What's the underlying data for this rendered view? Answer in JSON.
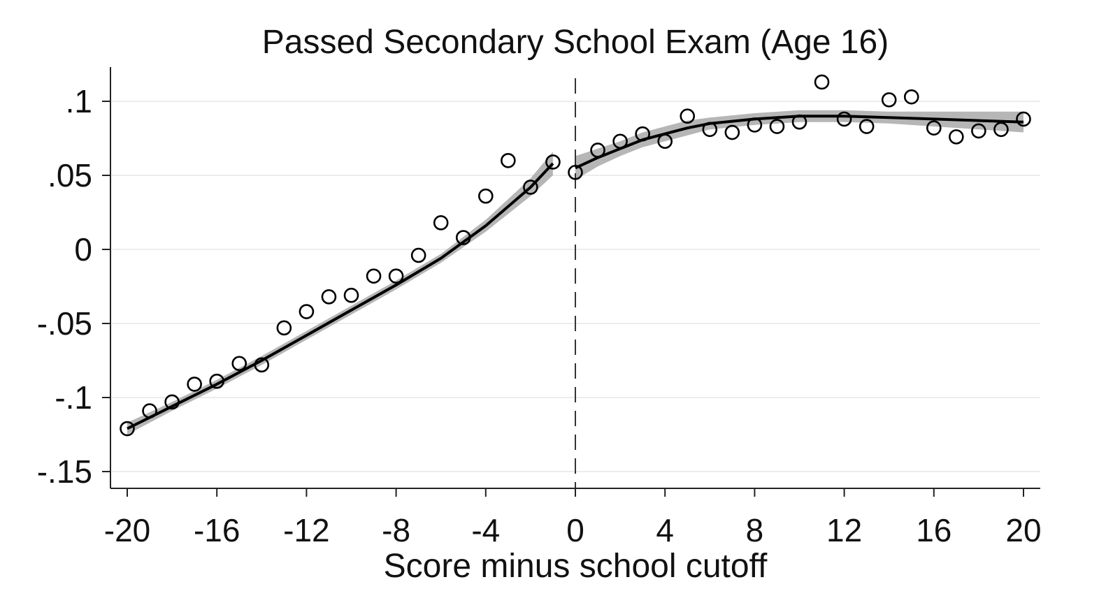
{
  "chart_data": {
    "type": "scatter",
    "title": "Passed Secondary School Exam (Age 16)",
    "xlabel": "Score minus school cutoff",
    "ylabel": "",
    "xlim": [
      -20,
      20
    ],
    "ylim": [
      -0.16,
      0.12
    ],
    "xticks": [
      -20,
      -16,
      -12,
      -8,
      -4,
      0,
      4,
      8,
      12,
      16,
      20
    ],
    "xtick_labels": [
      "-20",
      "-16",
      "-12",
      "-8",
      "-4",
      "0",
      "4",
      "8",
      "12",
      "16",
      "20"
    ],
    "yticks": [
      0.1,
      0.05,
      0,
      -0.05,
      -0.1,
      -0.15
    ],
    "ytick_labels": [
      ".1",
      ".05",
      "0",
      "-.05",
      "-.1",
      "-.15"
    ],
    "grid": true,
    "cutoff_line": {
      "x": 0,
      "style": "dashed"
    },
    "points": {
      "x": [
        -20,
        -19,
        -18,
        -17,
        -16,
        -15,
        -14,
        -13,
        -12,
        -11,
        -10,
        -9,
        -8,
        -7,
        -6,
        -5,
        -4,
        -3,
        -2,
        -1,
        0,
        1,
        2,
        3,
        4,
        5,
        6,
        7,
        8,
        9,
        10,
        11,
        12,
        13,
        14,
        15,
        16,
        17,
        18,
        19,
        20
      ],
      "y": [
        -0.121,
        -0.109,
        -0.103,
        -0.091,
        -0.089,
        -0.077,
        -0.078,
        -0.053,
        -0.042,
        -0.032,
        -0.031,
        -0.018,
        -0.018,
        -0.004,
        0.018,
        0.008,
        0.036,
        0.06,
        0.042,
        0.059,
        0.052,
        0.067,
        0.073,
        0.078,
        0.073,
        0.09,
        0.081,
        0.079,
        0.084,
        0.083,
        0.086,
        0.113,
        0.088,
        0.083,
        0.101,
        0.103,
        0.082,
        0.076,
        0.08,
        0.081,
        0.088
      ]
    },
    "fit_left": {
      "x": [
        -20,
        -18,
        -16,
        -14,
        -12,
        -10,
        -8,
        -6,
        -4,
        -2,
        -1
      ],
      "y": [
        -0.121,
        -0.106,
        -0.091,
        -0.075,
        -0.058,
        -0.041,
        -0.024,
        -0.006,
        0.016,
        0.042,
        0.058
      ],
      "ci_half_width": [
        0.004,
        0.003,
        0.003,
        0.003,
        0.003,
        0.003,
        0.003,
        0.003,
        0.004,
        0.006,
        0.008
      ]
    },
    "fit_right": {
      "x": [
        0,
        1,
        2,
        3,
        4,
        5,
        6,
        8,
        10,
        12,
        14,
        16,
        18,
        20
      ],
      "y": [
        0.055,
        0.062,
        0.068,
        0.074,
        0.078,
        0.082,
        0.085,
        0.088,
        0.09,
        0.09,
        0.089,
        0.088,
        0.087,
        0.086
      ],
      "ci_half_width": [
        0.008,
        0.006,
        0.005,
        0.005,
        0.005,
        0.005,
        0.004,
        0.004,
        0.004,
        0.004,
        0.004,
        0.005,
        0.006,
        0.007
      ]
    }
  }
}
